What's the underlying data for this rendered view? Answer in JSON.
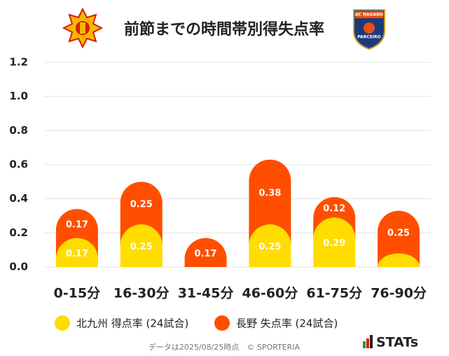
{
  "chart_data": {
    "type": "bar",
    "stacked": true,
    "title": "前節までの時間帯別得失点率",
    "logos": {
      "left_crest": "",
      "right_top": "AC NAGANO",
      "right_bottom": "PARCEIRO",
      "brand": "STATs"
    },
    "footer": "データは2025/08/25時点　© SPORTERIA",
    "categories": [
      "0-15分",
      "16-30分",
      "31-45分",
      "46-60分",
      "61-75分",
      "76-90分"
    ],
    "series": [
      {
        "name": "北九州 得点率 (24試合)",
        "color": "#FFDD00",
        "values": [
          0.17,
          0.25,
          0,
          0.25,
          0.29,
          0.08
        ],
        "value_labels": [
          "0.17",
          "0.25",
          null,
          "0.25",
          "0.29",
          null
        ]
      },
      {
        "name": "長野 失点率 (24試合)",
        "color": "#FF4E00",
        "values": [
          0.17,
          0.25,
          0.17,
          0.38,
          0.12,
          0.25
        ]
      }
    ],
    "ylim": [
      0,
      1.2
    ],
    "yticks": [
      {
        "value": 0,
        "label": "0.0"
      },
      0.2,
      0.4,
      0.6,
      0.8,
      {
        "value": 1,
        "label": "1.0"
      },
      1.2
    ],
    "grid": true
  }
}
